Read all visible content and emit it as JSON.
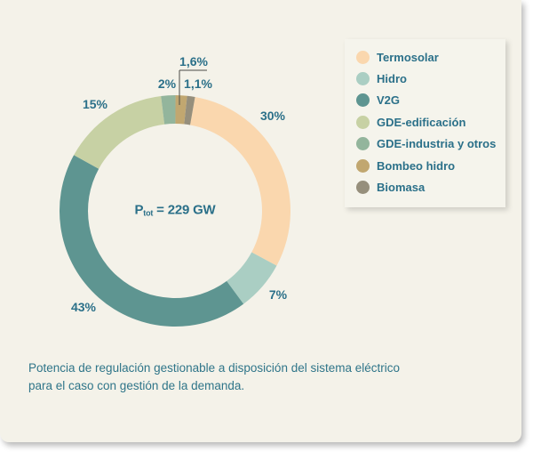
{
  "colors": {
    "card_bg": "#f4f2e9",
    "legend_bg": "#f5f4ec",
    "label_text": "#2b7089",
    "leader_line": "#4c4c46",
    "donut_hole": "#ffffff"
  },
  "chart_data": {
    "type": "pie",
    "subtype": "donut",
    "title": "",
    "unit": "%",
    "decimal_separator": ",",
    "start_angle_deg": 10,
    "legend_position": "right",
    "center_label": {
      "symbol": "P",
      "subscript": "tot",
      "rest": " = 229 GW",
      "full_text": "Ptot = 229 GW"
    },
    "segments": [
      {
        "label": "Termosolar",
        "value": 30,
        "display": "30%",
        "color": "#fad7ae"
      },
      {
        "label": "Hidro",
        "value": 7,
        "display": "7%",
        "color": "#aacec3"
      },
      {
        "label": "V2G",
        "value": 43,
        "display": "43%",
        "color": "#5e9591"
      },
      {
        "label": "GDE-edificación",
        "value": 15,
        "display": "15%",
        "color": "#c7d1a4"
      },
      {
        "label": "GDE-industria y otros",
        "value": 2,
        "display": "2%",
        "color": "#93b59c"
      },
      {
        "label": "Bombeo hidro",
        "value": 1.6,
        "display": "1,6%",
        "color": "#c1a770"
      },
      {
        "label": "Biomasa",
        "value": 1.1,
        "display": "1,1%",
        "color": "#968f7c"
      }
    ]
  },
  "caption": {
    "lines": [
      "Potencia de regulación gestionable a disposición del sistema eléctrico",
      "para el caso con gestión de la demanda."
    ]
  }
}
